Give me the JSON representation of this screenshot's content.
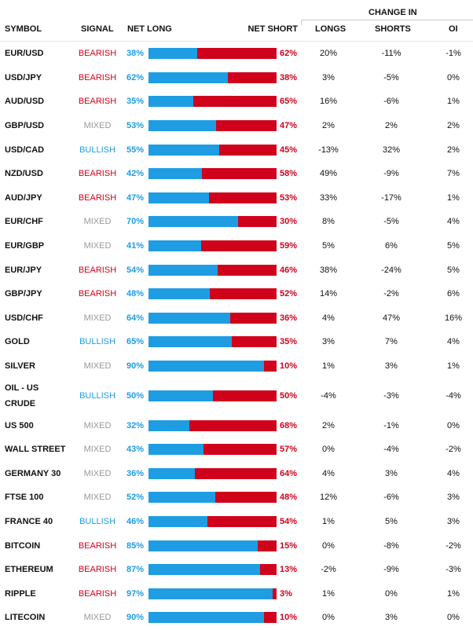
{
  "colors": {
    "long": "#1e9de3",
    "short": "#d0021b",
    "bearish": "#d0021b",
    "bullish": "#1e9de3",
    "mixed": "#999999"
  },
  "header": {
    "symbol": "SYMBOL",
    "signal": "SIGNAL",
    "net_long": "NET LONG",
    "net_short": "NET SHORT",
    "change_in": "CHANGE IN",
    "longs": "LONGS",
    "shorts": "SHORTS",
    "oi": "OI"
  },
  "rows": [
    {
      "symbol": "EUR/USD",
      "signal": "BEARISH",
      "net_long": "38%",
      "net_short": "62%",
      "longs": "20%",
      "shorts": "-11%",
      "oi": "-1%"
    },
    {
      "symbol": "USD/JPY",
      "signal": "BEARISH",
      "net_long": "62%",
      "net_short": "38%",
      "longs": "3%",
      "shorts": "-5%",
      "oi": "0%"
    },
    {
      "symbol": "AUD/USD",
      "signal": "BEARISH",
      "net_long": "35%",
      "net_short": "65%",
      "longs": "16%",
      "shorts": "-6%",
      "oi": "1%"
    },
    {
      "symbol": "GBP/USD",
      "signal": "MIXED",
      "net_long": "53%",
      "net_short": "47%",
      "longs": "2%",
      "shorts": "2%",
      "oi": "2%"
    },
    {
      "symbol": "USD/CAD",
      "signal": "BULLISH",
      "net_long": "55%",
      "net_short": "45%",
      "longs": "-13%",
      "shorts": "32%",
      "oi": "2%"
    },
    {
      "symbol": "NZD/USD",
      "signal": "BEARISH",
      "net_long": "42%",
      "net_short": "58%",
      "longs": "49%",
      "shorts": "-9%",
      "oi": "7%"
    },
    {
      "symbol": "AUD/JPY",
      "signal": "BEARISH",
      "net_long": "47%",
      "net_short": "53%",
      "longs": "33%",
      "shorts": "-17%",
      "oi": "1%"
    },
    {
      "symbol": "EUR/CHF",
      "signal": "MIXED",
      "net_long": "70%",
      "net_short": "30%",
      "longs": "8%",
      "shorts": "-5%",
      "oi": "4%"
    },
    {
      "symbol": "EUR/GBP",
      "signal": "MIXED",
      "net_long": "41%",
      "net_short": "59%",
      "longs": "5%",
      "shorts": "6%",
      "oi": "5%"
    },
    {
      "symbol": "EUR/JPY",
      "signal": "BEARISH",
      "net_long": "54%",
      "net_short": "46%",
      "longs": "38%",
      "shorts": "-24%",
      "oi": "5%"
    },
    {
      "symbol": "GBP/JPY",
      "signal": "BEARISH",
      "net_long": "48%",
      "net_short": "52%",
      "longs": "14%",
      "shorts": "-2%",
      "oi": "6%"
    },
    {
      "symbol": "USD/CHF",
      "signal": "MIXED",
      "net_long": "64%",
      "net_short": "36%",
      "longs": "4%",
      "shorts": "47%",
      "oi": "16%"
    },
    {
      "symbol": "GOLD",
      "signal": "BULLISH",
      "net_long": "65%",
      "net_short": "35%",
      "longs": "3%",
      "shorts": "7%",
      "oi": "4%"
    },
    {
      "symbol": "SILVER",
      "signal": "MIXED",
      "net_long": "90%",
      "net_short": "10%",
      "longs": "1%",
      "shorts": "3%",
      "oi": "1%"
    },
    {
      "symbol": "OIL - US CRUDE",
      "signal": "BULLISH",
      "net_long": "50%",
      "net_short": "50%",
      "longs": "-4%",
      "shorts": "-3%",
      "oi": "-4%"
    },
    {
      "symbol": "US 500",
      "signal": "MIXED",
      "net_long": "32%",
      "net_short": "68%",
      "longs": "2%",
      "shorts": "-1%",
      "oi": "0%"
    },
    {
      "symbol": "WALL STREET",
      "signal": "MIXED",
      "net_long": "43%",
      "net_short": "57%",
      "longs": "0%",
      "shorts": "-4%",
      "oi": "-2%"
    },
    {
      "symbol": "GERMANY 30",
      "signal": "MIXED",
      "net_long": "36%",
      "net_short": "64%",
      "longs": "4%",
      "shorts": "3%",
      "oi": "4%"
    },
    {
      "symbol": "FTSE 100",
      "signal": "MIXED",
      "net_long": "52%",
      "net_short": "48%",
      "longs": "12%",
      "shorts": "-6%",
      "oi": "3%"
    },
    {
      "symbol": "FRANCE 40",
      "signal": "BULLISH",
      "net_long": "46%",
      "net_short": "54%",
      "longs": "1%",
      "shorts": "5%",
      "oi": "3%"
    },
    {
      "symbol": "BITCOIN",
      "signal": "BEARISH",
      "net_long": "85%",
      "net_short": "15%",
      "longs": "0%",
      "shorts": "-8%",
      "oi": "-2%"
    },
    {
      "symbol": "ETHEREUM",
      "signal": "BEARISH",
      "net_long": "87%",
      "net_short": "13%",
      "longs": "-2%",
      "shorts": "-9%",
      "oi": "-3%"
    },
    {
      "symbol": "RIPPLE",
      "signal": "BEARISH",
      "net_long": "97%",
      "net_short": "3%",
      "longs": "1%",
      "shorts": "0%",
      "oi": "1%"
    },
    {
      "symbol": "LITECOIN",
      "signal": "MIXED",
      "net_long": "90%",
      "net_short": "10%",
      "longs": "0%",
      "shorts": "3%",
      "oi": "0%"
    }
  ]
}
